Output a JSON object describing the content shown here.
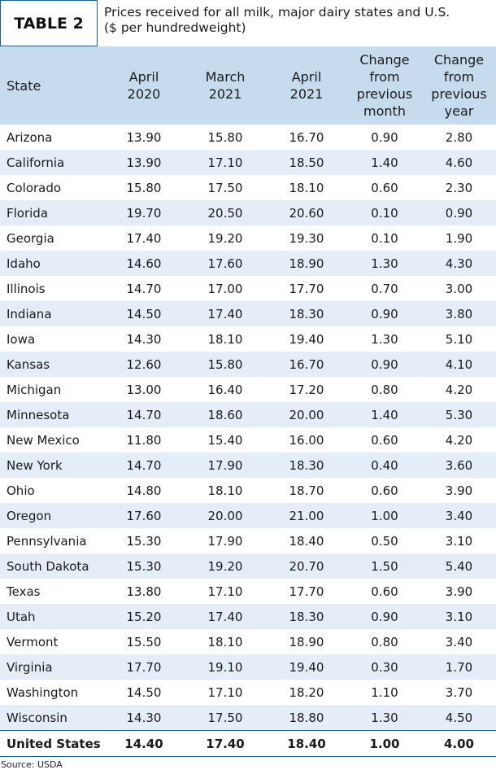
{
  "header": {
    "table_label": "TABLE 2",
    "caption_line1": "Prices received for all milk, major dairy states and U.S.",
    "caption_line2": "($ per hundredweight)"
  },
  "columns": [
    {
      "line1": "State"
    },
    {
      "line1": "April",
      "line2": "2020"
    },
    {
      "line1": "March",
      "line2": "2021"
    },
    {
      "line1": "April",
      "line2": "2021"
    },
    {
      "line1": "Change",
      "line2": "from",
      "line3": "previous",
      "line4": "month"
    },
    {
      "line1": "Change",
      "line2": "from",
      "line3": "previous",
      "line4": "year"
    }
  ],
  "rows": [
    {
      "state": "Arizona",
      "apr2020": "13.90",
      "mar2021": "15.80",
      "apr2021": "16.70",
      "chg_month": "0.90",
      "chg_year": "2.80"
    },
    {
      "state": "California",
      "apr2020": "13.90",
      "mar2021": "17.10",
      "apr2021": "18.50",
      "chg_month": "1.40",
      "chg_year": "4.60"
    },
    {
      "state": "Colorado",
      "apr2020": "15.80",
      "mar2021": "17.50",
      "apr2021": "18.10",
      "chg_month": "0.60",
      "chg_year": "2.30"
    },
    {
      "state": "Florida",
      "apr2020": "19.70",
      "mar2021": "20.50",
      "apr2021": "20.60",
      "chg_month": "0.10",
      "chg_year": "0.90"
    },
    {
      "state": "Georgia",
      "apr2020": "17.40",
      "mar2021": "19.20",
      "apr2021": "19.30",
      "chg_month": "0.10",
      "chg_year": "1.90"
    },
    {
      "state": "Idaho",
      "apr2020": "14.60",
      "mar2021": "17.60",
      "apr2021": "18.90",
      "chg_month": "1.30",
      "chg_year": "4.30"
    },
    {
      "state": "Illinois",
      "apr2020": "14.70",
      "mar2021": "17.00",
      "apr2021": "17.70",
      "chg_month": "0.70",
      "chg_year": "3.00"
    },
    {
      "state": "Indiana",
      "apr2020": "14.50",
      "mar2021": "17.40",
      "apr2021": "18.30",
      "chg_month": "0.90",
      "chg_year": "3.80"
    },
    {
      "state": "Iowa",
      "apr2020": "14.30",
      "mar2021": "18.10",
      "apr2021": "19.40",
      "chg_month": "1.30",
      "chg_year": "5.10"
    },
    {
      "state": "Kansas",
      "apr2020": "12.60",
      "mar2021": "15.80",
      "apr2021": "16.70",
      "chg_month": "0.90",
      "chg_year": "4.10"
    },
    {
      "state": "Michigan",
      "apr2020": "13.00",
      "mar2021": "16.40",
      "apr2021": "17.20",
      "chg_month": "0.80",
      "chg_year": "4.20"
    },
    {
      "state": "Minnesota",
      "apr2020": "14.70",
      "mar2021": "18.60",
      "apr2021": "20.00",
      "chg_month": "1.40",
      "chg_year": "5.30"
    },
    {
      "state": "New Mexico",
      "apr2020": "11.80",
      "mar2021": "15.40",
      "apr2021": "16.00",
      "chg_month": "0.60",
      "chg_year": "4.20"
    },
    {
      "state": "New York",
      "apr2020": "14.70",
      "mar2021": "17.90",
      "apr2021": "18.30",
      "chg_month": "0.40",
      "chg_year": "3.60"
    },
    {
      "state": "Ohio",
      "apr2020": "14.80",
      "mar2021": "18.10",
      "apr2021": "18.70",
      "chg_month": "0.60",
      "chg_year": "3.90"
    },
    {
      "state": "Oregon",
      "apr2020": "17.60",
      "mar2021": "20.00",
      "apr2021": "21.00",
      "chg_month": "1.00",
      "chg_year": "3.40"
    },
    {
      "state": "Pennsylvania",
      "apr2020": "15.30",
      "mar2021": "17.90",
      "apr2021": "18.40",
      "chg_month": "0.50",
      "chg_year": "3.10"
    },
    {
      "state": "South Dakota",
      "apr2020": "15.30",
      "mar2021": "19.20",
      "apr2021": "20.70",
      "chg_month": "1.50",
      "chg_year": "5.40"
    },
    {
      "state": "Texas",
      "apr2020": "13.80",
      "mar2021": "17.10",
      "apr2021": "17.70",
      "chg_month": "0.60",
      "chg_year": "3.90"
    },
    {
      "state": "Utah",
      "apr2020": "15.20",
      "mar2021": "17.40",
      "apr2021": "18.30",
      "chg_month": "0.90",
      "chg_year": "3.10"
    },
    {
      "state": "Vermont",
      "apr2020": "15.50",
      "mar2021": "18.10",
      "apr2021": "18.90",
      "chg_month": "0.80",
      "chg_year": "3.40"
    },
    {
      "state": "Virginia",
      "apr2020": "17.70",
      "mar2021": "19.10",
      "apr2021": "19.40",
      "chg_month": "0.30",
      "chg_year": "1.70"
    },
    {
      "state": "Washington",
      "apr2020": "14.50",
      "mar2021": "17.10",
      "apr2021": "18.20",
      "chg_month": "1.10",
      "chg_year": "3.70"
    },
    {
      "state": "Wisconsin",
      "apr2020": "14.30",
      "mar2021": "17.50",
      "apr2021": "18.80",
      "chg_month": "1.30",
      "chg_year": "4.50"
    }
  ],
  "total": {
    "state": "United States",
    "apr2020": "14.40",
    "mar2021": "17.40",
    "apr2021": "18.40",
    "chg_month": "1.00",
    "chg_year": "4.00"
  },
  "source": "Source: USDA"
}
